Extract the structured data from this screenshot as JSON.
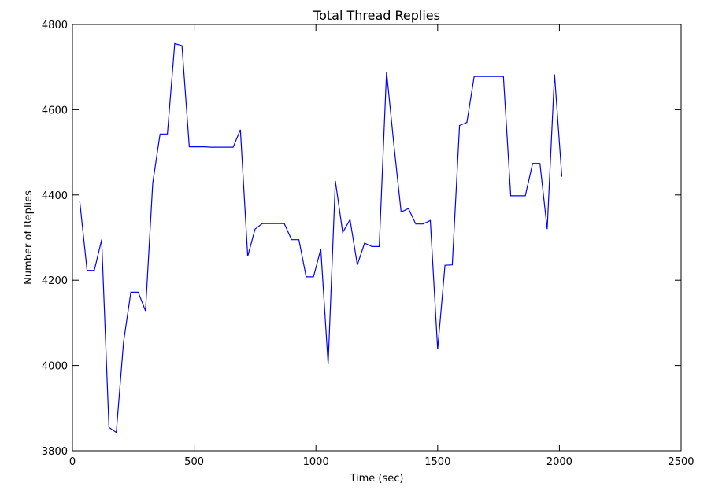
{
  "chart_data": {
    "type": "line",
    "title": "Total Thread Replies",
    "xlabel": "Time (sec)",
    "ylabel": "Number of Replies",
    "xlim": [
      0,
      2500
    ],
    "ylim": [
      3800,
      4800
    ],
    "xticks": [
      0,
      500,
      1000,
      1500,
      2000,
      2500
    ],
    "yticks": [
      3800,
      4000,
      4200,
      4400,
      4600,
      4800
    ],
    "grid": false,
    "line_color": "#0000ff",
    "series": [
      {
        "x": [
          30,
          60,
          90,
          120,
          150,
          180,
          210,
          240,
          270,
          300,
          330,
          360,
          390,
          420,
          450,
          480,
          510,
          540,
          570,
          600,
          630,
          660,
          690,
          720,
          750,
          780,
          810,
          840,
          870,
          900,
          930,
          960,
          990,
          1020,
          1050,
          1080,
          1110,
          1140,
          1170,
          1200,
          1230,
          1260,
          1290,
          1320,
          1350,
          1380,
          1410,
          1440,
          1470,
          1500,
          1530,
          1560,
          1590,
          1620,
          1650,
          1680,
          1710,
          1740,
          1770,
          1800,
          1830,
          1860,
          1890,
          1920,
          1950,
          1980,
          2010
        ],
        "y": [
          4385,
          4223,
          4223,
          4295,
          3855,
          3843,
          4055,
          4172,
          4172,
          4128,
          4428,
          4543,
          4543,
          4755,
          4750,
          4513,
          4513,
          4513,
          4512,
          4512,
          4512,
          4512,
          4553,
          4256,
          4320,
          4333,
          4333,
          4333,
          4333,
          4295,
          4295,
          4208,
          4208,
          4273,
          4003,
          4433,
          4312,
          4342,
          4236,
          4287,
          4279,
          4279,
          4689,
          4520,
          4360,
          4368,
          4332,
          4332,
          4340,
          4038,
          4235,
          4236,
          4563,
          4570,
          4678,
          4678,
          4678,
          4678,
          4678,
          4398,
          4398,
          4398,
          4474,
          4474,
          4320,
          4683,
          4443
        ]
      }
    ]
  }
}
